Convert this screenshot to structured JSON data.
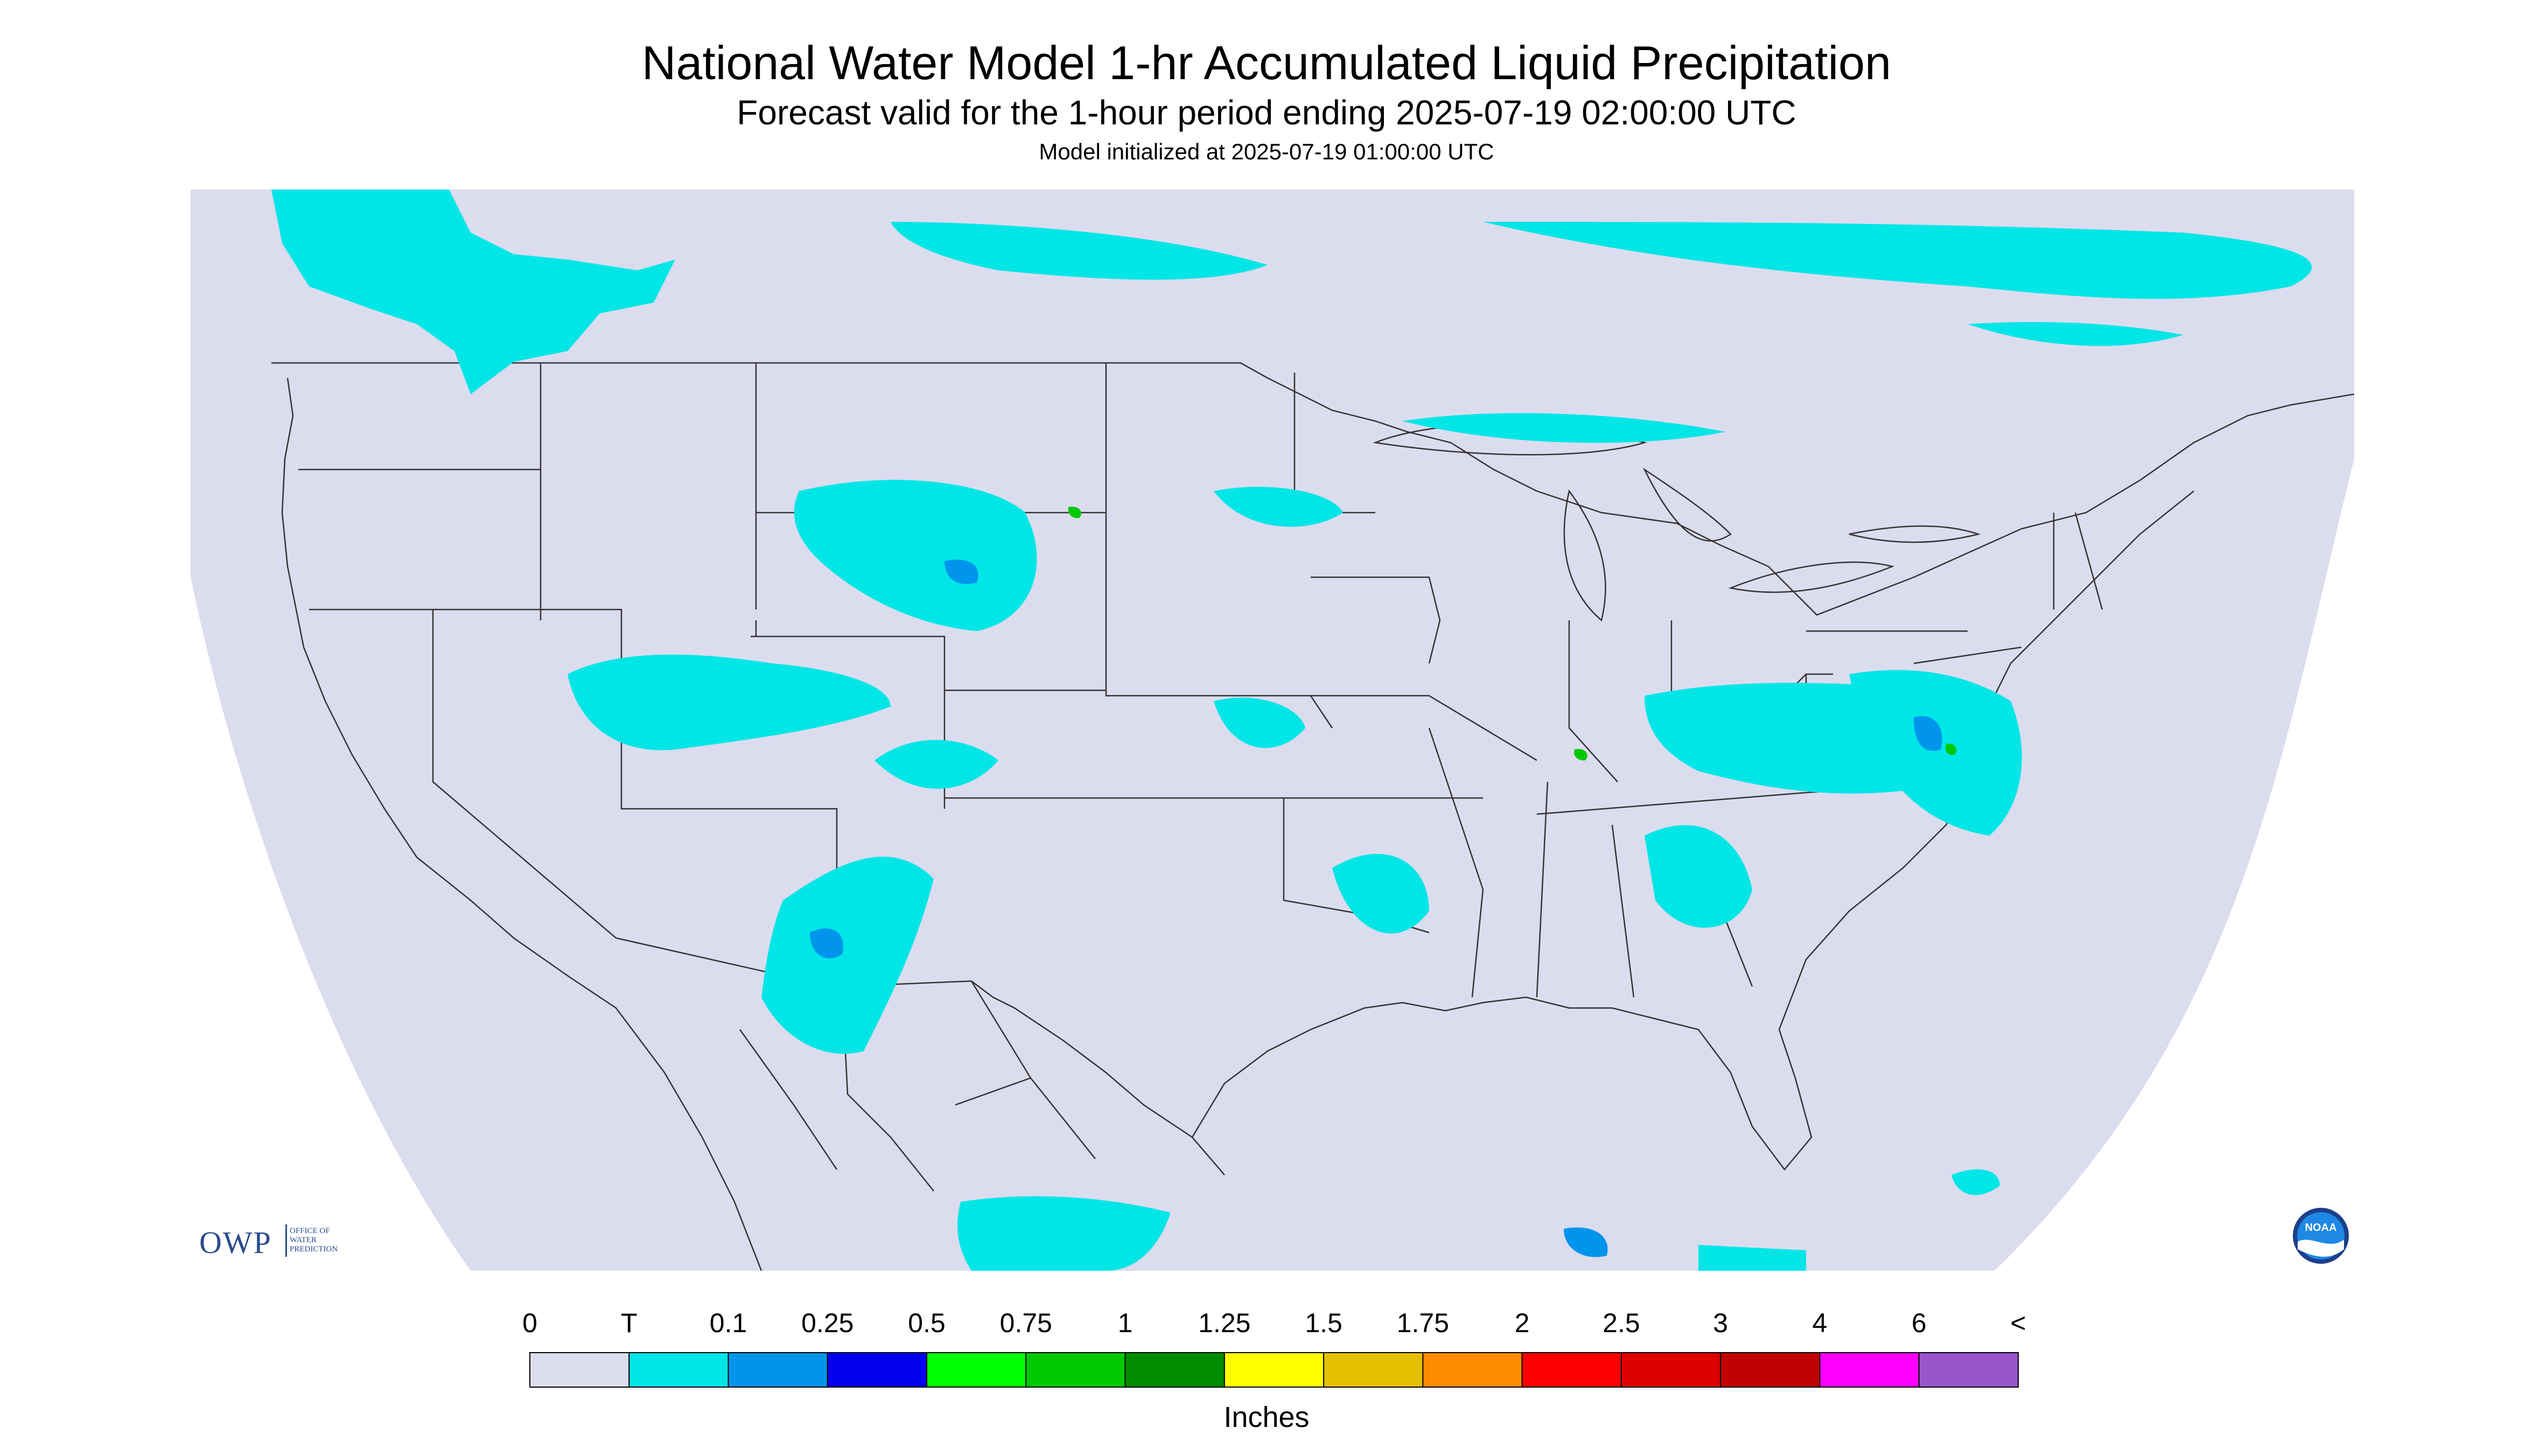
{
  "header": {
    "title": "National Water Model 1-hr Accumulated Liquid Precipitation",
    "subtitle": "Forecast valid for the 1-hour period ending 2025-07-19 02:00:00 UTC",
    "init_line": "Model initialized at 2025-07-19 01:00:00 UTC"
  },
  "map": {
    "background_color": "#ffffff",
    "no_precip_color": "#dcdcef",
    "boundary_color": "#333333",
    "icons": [
      "owp-logo",
      "noaa-logo"
    ]
  },
  "logos": {
    "owp_text": "OWP",
    "owp_sub_1": "OFFICE OF",
    "owp_sub_2": "WATER",
    "owp_sub_3": "PREDICTION",
    "noaa_text": "NOAA"
  },
  "legend": {
    "tick_labels": [
      "0",
      "T",
      "0.1",
      "0.25",
      "0.5",
      "0.75",
      "1",
      "1.25",
      "1.5",
      "1.75",
      "2",
      "2.5",
      "3",
      "4",
      "6",
      "<"
    ],
    "colors": [
      "#dcdcef",
      "#00e6e6",
      "#0095ed",
      "#0000ee",
      "#00ff00",
      "#00c800",
      "#008c00",
      "#ffff00",
      "#e6be00",
      "#ff8c00",
      "#ff0000",
      "#dc0000",
      "#bf0000",
      "#ff00ff",
      "#9955cc"
    ],
    "units_label": "Inches"
  }
}
